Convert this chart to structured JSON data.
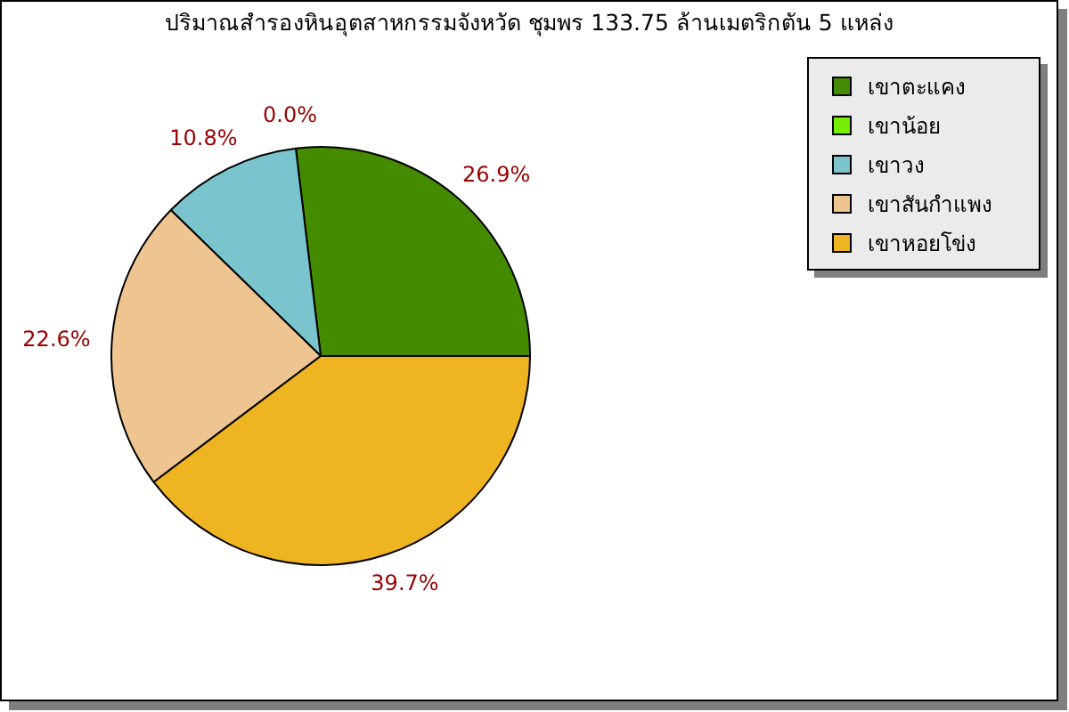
{
  "chart_data": {
    "type": "pie",
    "title": "ปริมาณสำรองหินอุตสาหกรรมจังหวัด ชุมพร 133.75 ล้านเมตริกตัน 5 แหล่ง",
    "categories": [
      "เขาตะแคง",
      "เขาน้อย",
      "เขาวง",
      "เขาสันกำแพง",
      "เขาหอยโข่ง"
    ],
    "values": [
      26.9,
      0,
      10.8,
      22.6,
      39.7
    ],
    "value_labels": [
      "26.9%",
      "0.0%",
      "10.8%",
      "22.6%",
      "39.7%"
    ],
    "colors": [
      "#458b00",
      "#76ee00",
      "#7ac5cd",
      "#eec591",
      "#eeb422"
    ],
    "legend": "top right"
  }
}
